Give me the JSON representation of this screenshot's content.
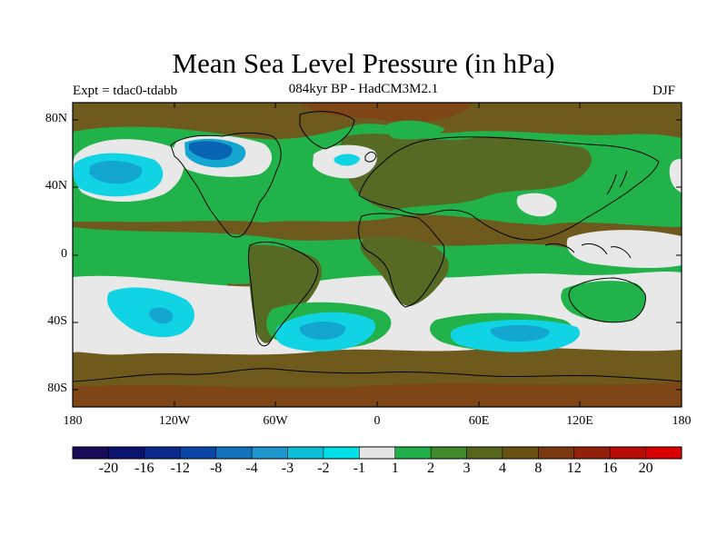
{
  "title": "Mean Sea Level Pressure (in hPa)",
  "subtitle": "084kyr BP - HadCM3M2.1",
  "experiment": "Expt = tdac0-tdabb",
  "season": "DJF",
  "axes": {
    "lat_labels": [
      "80N",
      "40N",
      "0",
      "40S",
      "80S"
    ],
    "lon_labels": [
      "180",
      "120W",
      "60W",
      "0",
      "60E",
      "120E",
      "180"
    ]
  },
  "colorbar": {
    "colors": [
      "#1a0a5a",
      "#0c1470",
      "#0a2a8e",
      "#0a46a8",
      "#1272be",
      "#1c96cc",
      "#0cc0d8",
      "#00e0e8",
      "#e6e6e6",
      "#1fb04a",
      "#3f8a2a",
      "#55661a",
      "#6a5214",
      "#7a3810",
      "#92200a",
      "#b80c06",
      "#d80000"
    ],
    "labels": [
      "-20",
      "-16",
      "-12",
      "-8",
      "-4",
      "-3",
      "-2",
      "-1",
      "1",
      "2",
      "3",
      "4",
      "8",
      "12",
      "16",
      "20"
    ]
  },
  "map_colors": {
    "background": "#6f5a1e",
    "dark_green": "#566a24",
    "green": "#22b24a",
    "white": "#e8e8e8",
    "cyan": "#10d4e4",
    "light_blue": "#12a6d0",
    "blue": "#0a64b4",
    "brown": "#7e4616",
    "coast": "#000000"
  }
}
